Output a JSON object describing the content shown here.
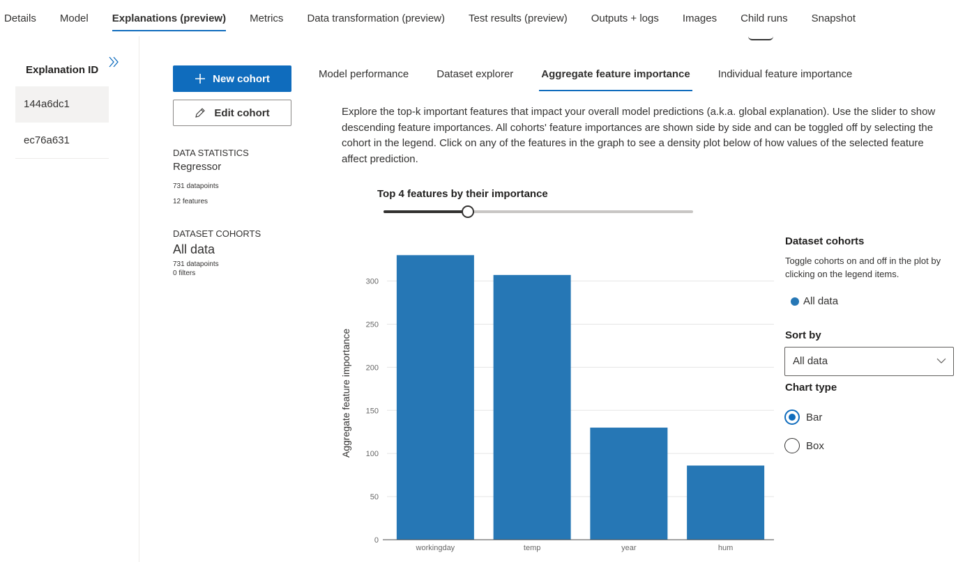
{
  "top_tabs": [
    {
      "label": "Details"
    },
    {
      "label": "Model"
    },
    {
      "label": "Explanations (preview)",
      "active": true
    },
    {
      "label": "Metrics"
    },
    {
      "label": "Data transformation (preview)"
    },
    {
      "label": "Test results (preview)"
    },
    {
      "label": "Outputs + logs"
    },
    {
      "label": "Images"
    },
    {
      "label": "Child runs"
    },
    {
      "label": "Snapshot"
    }
  ],
  "explanations": {
    "header": "Explanation ID",
    "items": [
      {
        "id": "144a6dc1",
        "selected": true
      },
      {
        "id": "ec76a631",
        "selected": false
      }
    ]
  },
  "cohort_panel": {
    "new_cohort_label": "New cohort",
    "edit_cohort_label": "Edit cohort",
    "data_statistics_title": "DATA STATISTICS",
    "model_type": "Regressor",
    "datapoints": "731 datapoints",
    "features": "12 features",
    "dataset_cohorts_title": "DATASET COHORTS",
    "cohort_name": "All data",
    "cohort_datapoints": "731 datapoints",
    "cohort_filters": "0 filters"
  },
  "inner_tabs": [
    {
      "label": "Model performance"
    },
    {
      "label": "Dataset explorer"
    },
    {
      "label": "Aggregate feature importance",
      "active": true
    },
    {
      "label": "Individual feature importance"
    }
  ],
  "description": "Explore the top-k important features that impact your overall model predictions (a.k.a. global explanation). Use the slider to show descending feature importances. All cohorts' feature importances are shown side by side and can be toggled off by selecting the cohort in the legend. Click on any of the features in the graph to see a density plot below of how values of the selected feature affect prediction.",
  "slider": {
    "label": "Top 4 features by their importance",
    "value": 4,
    "max": 12
  },
  "right_panel": {
    "dataset_cohorts_title": "Dataset cohorts",
    "help_text": "Toggle cohorts on and off in the plot by clicking on the legend items.",
    "legend_item": "All data",
    "sort_by_label": "Sort by",
    "sort_by_value": "All data",
    "chart_type_label": "Chart type",
    "chart_type_options": [
      {
        "label": "Bar",
        "checked": true
      },
      {
        "label": "Box",
        "checked": false
      }
    ]
  },
  "colors": {
    "accent": "#0f6cbd",
    "bar": "#2677b5"
  },
  "chart_data": {
    "type": "bar",
    "categories": [
      "workingday",
      "temp",
      "year",
      "hum"
    ],
    "series": [
      {
        "name": "All data",
        "values": [
          330,
          307,
          130,
          86
        ]
      }
    ],
    "ylabel": "Aggregate feature importance",
    "xlabel": "",
    "ylim": [
      0,
      340
    ],
    "yticks": [
      0,
      50,
      100,
      150,
      200,
      250,
      300
    ],
    "grid": true
  }
}
